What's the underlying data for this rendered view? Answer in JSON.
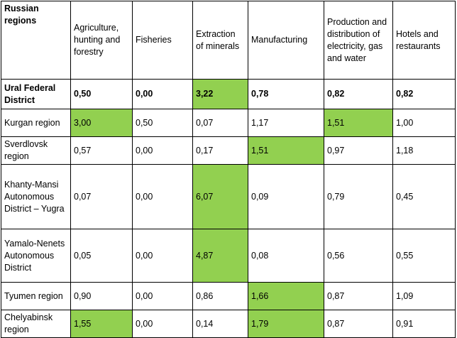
{
  "header": {
    "region": "Russian regions",
    "columns": [
      "Agriculture, hunting and forestry",
      "Fisheries",
      "Extraction of minerals",
      "Manufacturing",
      "Production and distribution of electricity, gas and water",
      "Hotels and restaurants"
    ]
  },
  "highlight_color": "#92d050",
  "rows": [
    {
      "region": "Ural Federal District",
      "values": [
        "0,50",
        "0,00",
        "3,22",
        "0,78",
        "0,82",
        "0,82"
      ],
      "highlighted": [
        false,
        false,
        true,
        false,
        false,
        false
      ],
      "bold": true
    },
    {
      "region": "Kurgan region",
      "values": [
        "3,00",
        "0,50",
        "0,07",
        "1,17",
        "1,51",
        "1,00"
      ],
      "highlighted": [
        true,
        false,
        false,
        false,
        true,
        false
      ],
      "bold": false
    },
    {
      "region": "Sverdlovsk region",
      "values": [
        "0,57",
        "0,00",
        "0,17",
        "1,51",
        "0,97",
        "1,18"
      ],
      "highlighted": [
        false,
        false,
        false,
        true,
        false,
        false
      ],
      "bold": false
    },
    {
      "region": "Khanty-Mansi Autonomous District – Yugra",
      "values": [
        "0,07",
        "0,00",
        "6,07",
        "0,09",
        "0,79",
        "0,45"
      ],
      "highlighted": [
        false,
        false,
        true,
        false,
        false,
        false
      ],
      "bold": false
    },
    {
      "region": "Yamalo-Nenets Autonomous District",
      "values": [
        "0,05",
        "0,00",
        "4,87",
        "0,08",
        "0,56",
        "0,55"
      ],
      "highlighted": [
        false,
        false,
        true,
        false,
        false,
        false
      ],
      "bold": false
    },
    {
      "region": "Tyumen region",
      "values": [
        "0,90",
        "0,00",
        "0,86",
        "1,66",
        "0,87",
        "1,09"
      ],
      "highlighted": [
        false,
        false,
        false,
        true,
        false,
        false
      ],
      "bold": false
    },
    {
      "region": "Chelyabinsk region",
      "values": [
        "1,55",
        "0,00",
        "0,14",
        "1,79",
        "0,87",
        "0,91"
      ],
      "highlighted": [
        true,
        false,
        false,
        true,
        false,
        false
      ],
      "bold": false
    }
  ]
}
